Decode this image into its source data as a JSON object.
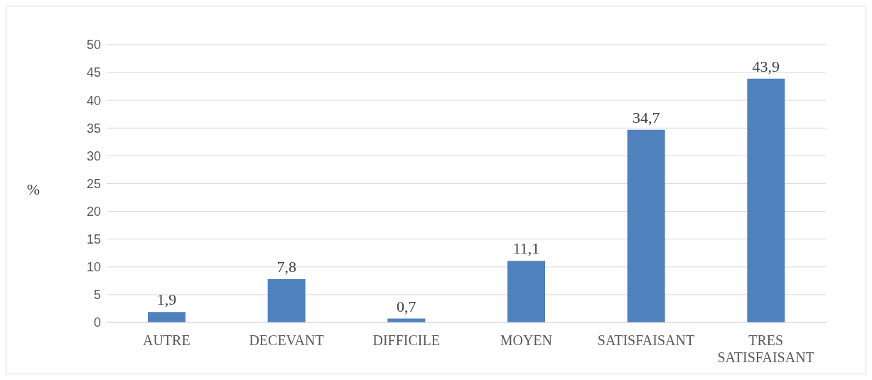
{
  "chart_data": {
    "type": "bar",
    "ylabel": "%",
    "categories": [
      "AUTRE",
      "DECEVANT",
      "DIFFICILE",
      "MOYEN",
      "SATISFAISANT",
      "TRES SATISFAISANT"
    ],
    "values": [
      1.9,
      7.8,
      0.7,
      11.1,
      34.7,
      43.9
    ],
    "value_labels": [
      "1,9",
      "7,8",
      "0,7",
      "11,1",
      "34,7",
      "43,9"
    ],
    "color": "#4f81bd",
    "ylim": [
      0,
      50
    ],
    "yticks": [
      0,
      5,
      10,
      15,
      20,
      25,
      30,
      35,
      40,
      45,
      50
    ],
    "grid": "y",
    "legend": false
  }
}
